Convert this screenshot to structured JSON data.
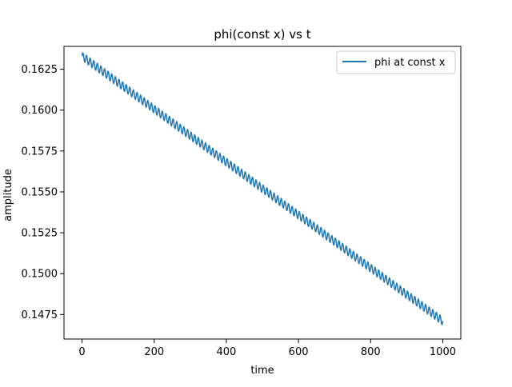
{
  "chart_data": {
    "type": "line",
    "title": "phi(const x) vs t",
    "xlabel": "time",
    "ylabel": "amplitude",
    "xlim": [
      -50,
      1050
    ],
    "ylim": [
      0.146,
      0.1639
    ],
    "xticks": [
      0,
      200,
      400,
      600,
      800,
      1000
    ],
    "yticks": [
      0.1475,
      0.15,
      0.1525,
      0.155,
      0.1575,
      0.16,
      0.1625
    ],
    "xtick_labels": [
      "0",
      "200",
      "400",
      "600",
      "800",
      "1000"
    ],
    "ytick_labels": [
      "0.1475",
      "0.1500",
      "0.1525",
      "0.1550",
      "0.1575",
      "0.1600",
      "0.1625"
    ],
    "grid": false,
    "legend": {
      "placement": "top-right",
      "entries": [
        "phi at const x"
      ]
    },
    "series": [
      {
        "name": "phi at const x",
        "color": "#1f77b4",
        "x": [
          0,
          1000
        ],
        "y": [
          0.1633,
          0.1471
        ],
        "oscillation_amplitude": 0.00025,
        "oscillation_period": 10
      }
    ]
  }
}
